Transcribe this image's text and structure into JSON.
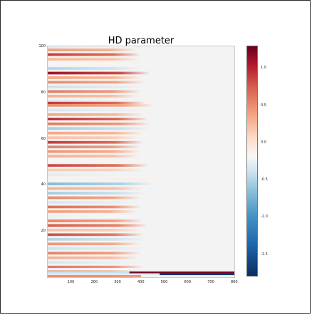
{
  "chart_data": {
    "type": "heatmap",
    "title": "HD parameter",
    "xlabel": "",
    "ylabel": "",
    "xlim": [
      0,
      800
    ],
    "ylim": [
      0,
      100
    ],
    "x_ticks": [
      "100",
      "200",
      "300",
      "400",
      "500",
      "600",
      "700",
      "800"
    ],
    "y_ticks": [
      "20",
      "40",
      "60",
      "80",
      "100"
    ],
    "colorbar": {
      "range": [
        -1.8,
        1.3
      ],
      "ticks": [
        "1.0",
        "0.5",
        "0.0",
        "-0.5",
        "-1.0",
        "-1.5"
      ],
      "colormap": "RdBu_r"
    },
    "rows": [
      {
        "y": 99.5,
        "v": -0.3,
        "end": 390
      },
      {
        "y": 98.5,
        "v": 0.4,
        "end": 380
      },
      {
        "y": 96.5,
        "v": 0.9,
        "end": 400
      },
      {
        "y": 94.5,
        "v": 0.25,
        "end": 395
      },
      {
        "y": 92.5,
        "v": -0.2,
        "end": 410
      },
      {
        "y": 90.5,
        "v": -0.5,
        "end": 400
      },
      {
        "y": 88.5,
        "v": 1.1,
        "end": 440
      },
      {
        "y": 86.5,
        "v": 0.35,
        "end": 405
      },
      {
        "y": 84.5,
        "v": 0.5,
        "end": 420
      },
      {
        "y": 82.5,
        "v": -0.4,
        "end": 410
      },
      {
        "y": 80.5,
        "v": 0.6,
        "end": 400
      },
      {
        "y": 78.5,
        "v": 0.3,
        "end": 390
      },
      {
        "y": 76.5,
        "v": -0.3,
        "end": 440
      },
      {
        "y": 75.5,
        "v": 0.9,
        "end": 420
      },
      {
        "y": 74.5,
        "v": 0.5,
        "end": 455
      },
      {
        "y": 72.5,
        "v": -0.35,
        "end": 420
      },
      {
        "y": 70.5,
        "v": 0.35,
        "end": 410
      },
      {
        "y": 68.5,
        "v": 1.0,
        "end": 430
      },
      {
        "y": 67.5,
        "v": -0.2,
        "end": 420
      },
      {
        "y": 66.5,
        "v": 0.6,
        "end": 440
      },
      {
        "y": 64.5,
        "v": -0.55,
        "end": 440
      },
      {
        "y": 62.5,
        "v": 0.35,
        "end": 410
      },
      {
        "y": 60.5,
        "v": 0.2,
        "end": 390
      },
      {
        "y": 58.5,
        "v": 0.9,
        "end": 410
      },
      {
        "y": 56.5,
        "v": 0.55,
        "end": 400
      },
      {
        "y": 54.5,
        "v": 0.45,
        "end": 400
      },
      {
        "y": 52.5,
        "v": 0.3,
        "end": 395
      },
      {
        "y": 50.5,
        "v": -0.2,
        "end": 410
      },
      {
        "y": 48.5,
        "v": 0.85,
        "end": 430
      },
      {
        "y": 46.5,
        "v": 0.15,
        "end": 410
      },
      {
        "y": 44.5,
        "v": -0.3,
        "end": 440
      },
      {
        "y": 42.5,
        "v": -0.15,
        "end": 560
      },
      {
        "y": 40.5,
        "v": -0.7,
        "end": 450
      },
      {
        "y": 38.5,
        "v": 0.3,
        "end": 410
      },
      {
        "y": 36.5,
        "v": -0.55,
        "end": 420
      },
      {
        "y": 34.5,
        "v": 0.5,
        "end": 400
      },
      {
        "y": 32.5,
        "v": -0.35,
        "end": 410
      },
      {
        "y": 30.5,
        "v": 0.65,
        "end": 400
      },
      {
        "y": 28.5,
        "v": 0.4,
        "end": 380
      },
      {
        "y": 26.5,
        "v": -0.25,
        "end": 400
      },
      {
        "y": 24.5,
        "v": 0.55,
        "end": 410
      },
      {
        "y": 22.5,
        "v": 0.75,
        "end": 430
      },
      {
        "y": 20.5,
        "v": 0.2,
        "end": 400
      },
      {
        "y": 18.5,
        "v": 0.8,
        "end": 410
      },
      {
        "y": 16.5,
        "v": -0.5,
        "end": 420
      },
      {
        "y": 14.5,
        "v": 0.45,
        "end": 400
      },
      {
        "y": 12.5,
        "v": -0.4,
        "end": 420
      },
      {
        "y": 10.5,
        "v": 0.55,
        "end": 400
      },
      {
        "y": 8.5,
        "v": 0.3,
        "end": 390
      },
      {
        "y": 6.5,
        "v": -0.35,
        "end": 400
      },
      {
        "y": 4.5,
        "v": 0.6,
        "end": 410
      },
      {
        "y": 3.5,
        "v": -0.25,
        "end": 400
      },
      {
        "y": 2.5,
        "v": 0.4,
        "end": 380
      },
      {
        "y": 0.5,
        "v": 0.5,
        "end": 360
      }
    ],
    "bottom_rows": [
      {
        "y": 2.1,
        "segments": [
          {
            "from": 0,
            "to": 350,
            "v": -0.4
          },
          {
            "from": 350,
            "to": 800,
            "v": 1.25
          }
        ]
      },
      {
        "y": 1.3,
        "segments": [
          {
            "from": 0,
            "to": 480,
            "v": -0.3
          },
          {
            "from": 480,
            "to": 800,
            "v": -1.7
          }
        ]
      },
      {
        "y": 0.5,
        "segments": [
          {
            "from": 0,
            "to": 400,
            "v": 0.5
          }
        ]
      }
    ]
  }
}
